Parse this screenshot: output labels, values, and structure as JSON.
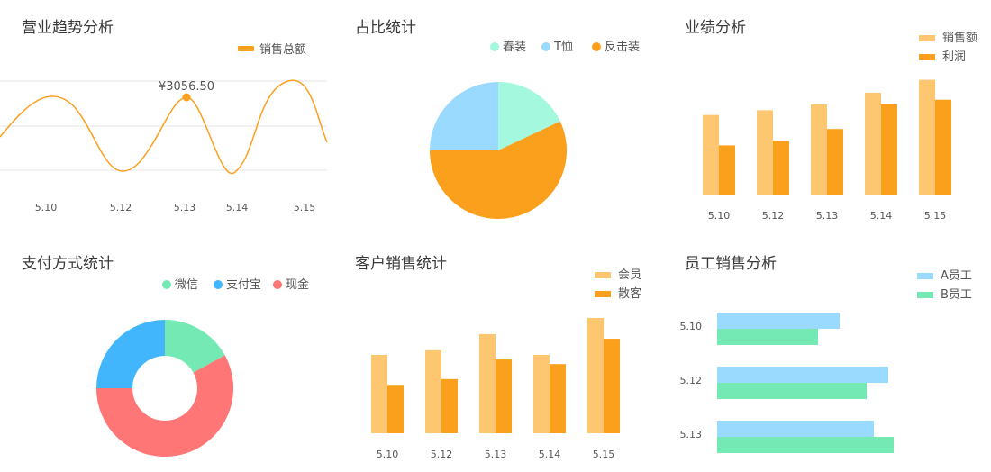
{
  "colors": {
    "orange": "#fba01d",
    "orange_light": "#fdc671",
    "mint": "#a3f8de",
    "sky": "#9bdaff",
    "green": "#74e9b4",
    "blue": "#41b6fd",
    "red": "#ff7676",
    "grid": "#e6e6e6"
  },
  "chart_data": [
    {
      "id": "revenue",
      "type": "line",
      "title": "营业趋势分析",
      "series": [
        {
          "name": "销售总额",
          "color": "#fba01d"
        }
      ],
      "x_ticks": [
        "5.10",
        "5.12",
        "5.13",
        "5.14",
        "5.15"
      ],
      "annotation": "¥3056.50",
      "legend_position": "top-right",
      "grid": true
    },
    {
      "id": "share",
      "type": "pie",
      "title": "占比统计",
      "slices": [
        {
          "name": "春装",
          "value": 18,
          "color": "#a3f8de"
        },
        {
          "name": "反击装",
          "value": 57,
          "color": "#fba01d"
        },
        {
          "name": "T恤",
          "value": 25,
          "color": "#9bdaff"
        }
      ],
      "legend": [
        "春装",
        "T恤",
        "反击装"
      ],
      "legend_position": "top-right"
    },
    {
      "id": "performance",
      "type": "bar",
      "title": "业绩分析",
      "categories": [
        "5.10",
        "5.12",
        "5.13",
        "5.14",
        "5.15"
      ],
      "series": [
        {
          "name": "销售额",
          "values": [
            68,
            72,
            77,
            87,
            98
          ],
          "color": "#fdc671"
        },
        {
          "name": "利润",
          "values": [
            42,
            46,
            56,
            77,
            81
          ],
          "color": "#fba01d"
        }
      ],
      "ylim": [
        0,
        100
      ],
      "legend_position": "top-right"
    },
    {
      "id": "payment",
      "type": "pie",
      "subtype": "donut",
      "title": "支付方式统计",
      "slices": [
        {
          "name": "微信",
          "value": 17,
          "color": "#74e9b4"
        },
        {
          "name": "现金",
          "value": 58,
          "color": "#ff7676"
        },
        {
          "name": "支付宝",
          "value": 25,
          "color": "#41b6fd"
        }
      ],
      "legend": [
        "微信",
        "支付宝",
        "现金"
      ],
      "legend_position": "top-right"
    },
    {
      "id": "customers",
      "type": "bar",
      "title": "客户销售统计",
      "categories": [
        "5.10",
        "5.12",
        "5.13",
        "5.14",
        "5.15"
      ],
      "series": [
        {
          "name": "会员",
          "values": [
            68,
            72,
            86,
            68,
            100
          ],
          "color": "#fdc671"
        },
        {
          "name": "散客",
          "values": [
            42,
            47,
            64,
            60,
            82
          ],
          "color": "#fba01d"
        }
      ],
      "ylim": [
        0,
        100
      ],
      "legend_position": "top-right"
    },
    {
      "id": "staff",
      "type": "bar",
      "orientation": "horizontal",
      "title": "员工销售分析",
      "categories": [
        "5.10",
        "5.12",
        "5.13"
      ],
      "series": [
        {
          "name": "A员工",
          "values": [
            68,
            95,
            87
          ],
          "color": "#9bdaff"
        },
        {
          "name": "B员工",
          "values": [
            56,
            83,
            98
          ],
          "color": "#74e9b4"
        }
      ],
      "xlim": [
        0,
        100
      ],
      "legend_position": "top-right"
    }
  ]
}
